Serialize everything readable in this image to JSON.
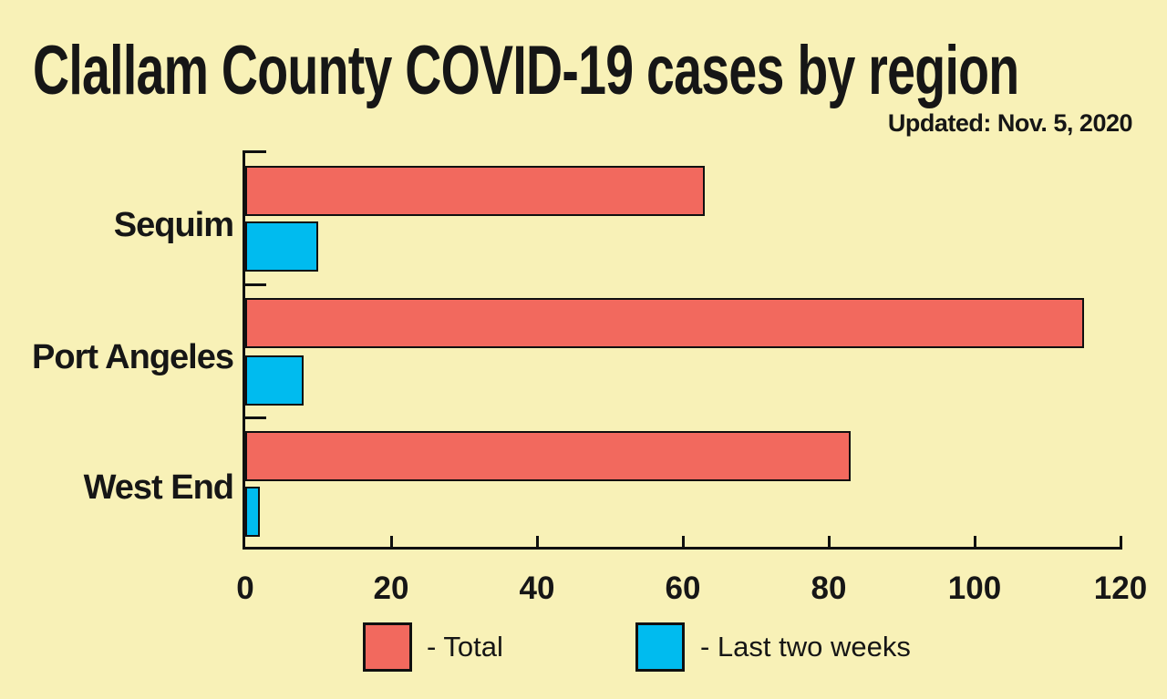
{
  "page": {
    "title": "Clallam County COVID-19 cases by region",
    "updated": "Updated: Nov. 5, 2020"
  },
  "colors": {
    "background": "#F8F1B7",
    "total_bar": "#F2695E",
    "recent_bar": "#00BBEF",
    "outline": "#101010"
  },
  "chart_data": {
    "type": "bar",
    "orientation": "horizontal",
    "title": "Clallam County COVID-19 cases by region",
    "subtitle": "Updated: Nov. 5, 2020",
    "categories": [
      "Sequim",
      "Port Angeles",
      "West End"
    ],
    "series": [
      {
        "name": "Total",
        "color": "#F2695E",
        "values": [
          63,
          115,
          83
        ]
      },
      {
        "name": "Last two weeks",
        "color": "#00BBEF",
        "values": [
          10,
          8,
          2
        ]
      }
    ],
    "xlim": [
      0,
      120
    ],
    "x_ticks": [
      0,
      20,
      40,
      60,
      80,
      100,
      120
    ],
    "grid": false,
    "legend_position": "bottom",
    "legend": {
      "total_label": "- Total",
      "recent_label": "- Last two weeks"
    }
  }
}
